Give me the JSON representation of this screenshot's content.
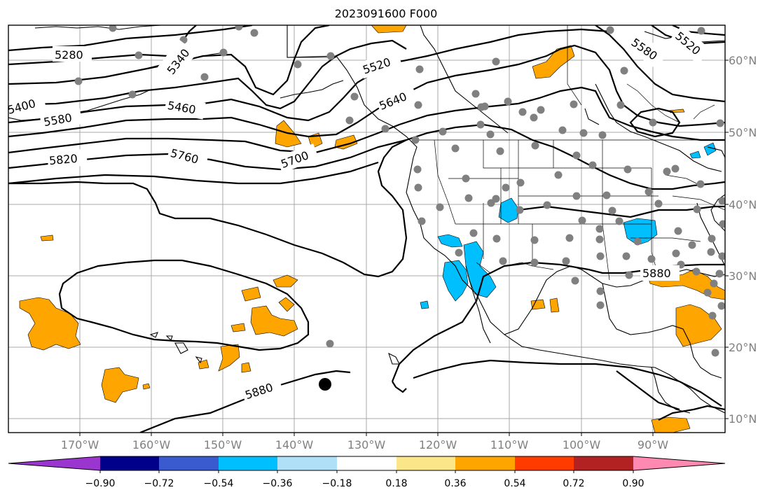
{
  "title": "2023091600 F000",
  "lat_labels": [
    "60°N",
    "50°N",
    "40°N",
    "30°N",
    "20°N",
    "10°N"
  ],
  "lon_labels": [
    "170°W",
    "160°W",
    "150°W",
    "140°W",
    "130°W",
    "120°W",
    "110°W",
    "100°W",
    "90°W"
  ],
  "colorbar": {
    "ticks": [
      "−0.90",
      "−0.72",
      "−0.54",
      "−0.36",
      "−0.18",
      "0.18",
      "0.36",
      "0.54",
      "0.72",
      "0.90"
    ],
    "colors": [
      "#9b35d0",
      "#00008b",
      "#3a5bd0",
      "#00bfff",
      "#b0e0f8",
      "#ffffff",
      "#fbe68a",
      "#ffa500",
      "#ff3b00",
      "#b22222",
      "#ff89b0"
    ]
  },
  "contour_labels": [
    "5280",
    "5340",
    "5400",
    "5460",
    "5520",
    "5580",
    "5580",
    "5520",
    "5640",
    "5700",
    "5760",
    "5820",
    "5880",
    "5880"
  ],
  "colors": {
    "positive": "#ffa500",
    "negative": "#00bfff",
    "station": "#808080",
    "grid": "#a9a9a9"
  }
}
